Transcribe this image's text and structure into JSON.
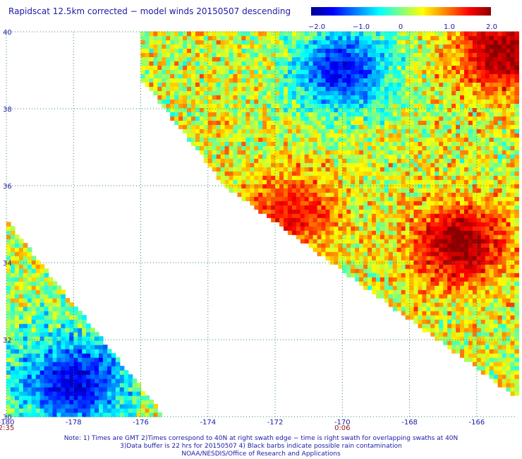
{
  "title": "Rapidscat 12.5km corrected − model winds 20150507 descending",
  "colorbar": {
    "labels": [
      "−2.0",
      "−1.0",
      "0",
      "1.0",
      "2.0"
    ],
    "range": [
      -2.0,
      2.0
    ],
    "colors": [
      "#00008f",
      "#0000ff",
      "#0080ff",
      "#00ffff",
      "#80ff80",
      "#ffff00",
      "#ff8000",
      "#ff0000",
      "#8b0000"
    ]
  },
  "chart_data": {
    "type": "heatmap",
    "title": "Rapidscat 12.5km corrected − model winds 20150507 descending",
    "x_ticks": [
      "-180",
      "-178",
      "-176",
      "-174",
      "-172",
      "-170",
      "-168",
      "-166"
    ],
    "y_ticks": [
      "30",
      "32",
      "34",
      "36",
      "38",
      "40"
    ],
    "xlim": [
      -180,
      -164.8
    ],
    "ylim": [
      30,
      40
    ],
    "grid": true,
    "value_range": [
      -2.0,
      2.0
    ],
    "time_labels": [
      {
        "text": "2:35",
        "lon": -180
      },
      {
        "text": "0:06",
        "lon": -170
      }
    ],
    "swaths": [
      {
        "name": "right swath",
        "corners_lon_lat": [
          [
            -176.0,
            40.0
          ],
          [
            -164.8,
            40.0
          ],
          [
            -164.8,
            30.5
          ],
          [
            -173.5,
            36.0
          ],
          [
            -176.0,
            38.8
          ]
        ]
      },
      {
        "name": "left swath",
        "corners_lon_lat": [
          [
            -180.0,
            35.1
          ],
          [
            -180.0,
            30.0
          ],
          [
            -175.3,
            30.0
          ]
        ]
      }
    ],
    "regions": [
      {
        "description_value": -1.5,
        "lon_lat": [
          -170.0,
          39.0
        ]
      },
      {
        "description_value": -1.2,
        "lon_lat": [
          -178.0,
          30.8
        ]
      },
      {
        "description_value": 2.0,
        "lon_lat": [
          -166.5,
          34.5
        ]
      },
      {
        "description_value": 2.0,
        "lon_lat": [
          -165.2,
          39.5
        ]
      },
      {
        "description_value": 1.5,
        "lon_lat": [
          -171.5,
          35.3
        ]
      }
    ]
  },
  "notes": [
    "Note: 1) Times are GMT 2)Times correspond to 40N at right swath edge − time is right swath for overlapping swaths at 40N",
    "3)Data buffer is 22 hrs for 20150507 4) Black barbs indicate possible rain contamination",
    "NOAA/NESDIS/Office of Research and Applications"
  ]
}
